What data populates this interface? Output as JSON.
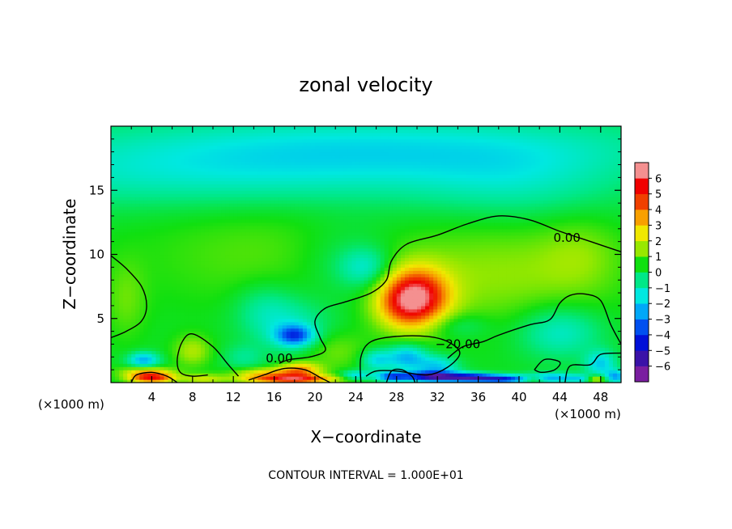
{
  "chart_data": {
    "type": "heatmap",
    "title": "zonal velocity",
    "xlabel": "X−coordinate",
    "ylabel": "Z−coordinate",
    "x_unit": "(×1000 m)",
    "y_unit": "(×1000 m)",
    "xlim": [
      0,
      50
    ],
    "ylim": [
      0,
      20
    ],
    "x_ticks": [
      4,
      8,
      12,
      16,
      20,
      24,
      28,
      32,
      36,
      40,
      44,
      48
    ],
    "y_ticks": [
      5,
      10,
      15
    ],
    "x_tick_labels": [
      "4",
      "8",
      "12",
      "16",
      "20",
      "24",
      "28",
      "32",
      "36",
      "40",
      "44",
      "48"
    ],
    "y_tick_labels": [
      "5",
      "10",
      "15"
    ],
    "colorbar": {
      "min": -6,
      "max": 6,
      "ticks": [
        6,
        5,
        4,
        3,
        2,
        1,
        0,
        -1,
        -2,
        -3,
        -4,
        -5,
        -6
      ],
      "tick_labels": [
        "6",
        "5",
        "4",
        "3",
        "2",
        "1",
        "0",
        "−1",
        "−2",
        "−3",
        "−4",
        "−5",
        "−6"
      ],
      "colors": [
        "#7a1ea0",
        "#3a12a8",
        "#0010d8",
        "#0050f0",
        "#00a8f8",
        "#00e8e0",
        "#00e888",
        "#10e010",
        "#98e800",
        "#f0e800",
        "#f8a000",
        "#f04000",
        "#f00000",
        "#f49090"
      ]
    },
    "contour_labels": [
      {
        "text": "0.00",
        "x": 44.7,
        "y": 11.3
      },
      {
        "text": "0.00",
        "x": 16.5,
        "y": 1.9
      },
      {
        "text": "−20.00",
        "x": 34.0,
        "y": 3.0
      }
    ],
    "contours": [
      {
        "level": 0,
        "points": [
          [
            0,
            9.9
          ],
          [
            1.5,
            8.9
          ],
          [
            3,
            7.5
          ],
          [
            3.5,
            6
          ],
          [
            3,
            4.8
          ],
          [
            1.5,
            4
          ],
          [
            0,
            3.5
          ]
        ]
      },
      {
        "level": 0,
        "points": [
          [
            50,
            10.2
          ],
          [
            47,
            11
          ],
          [
            44,
            11.8
          ],
          [
            41,
            12.7
          ],
          [
            38,
            13
          ],
          [
            35,
            12.4
          ],
          [
            32,
            11.5
          ],
          [
            29,
            10.8
          ],
          [
            27.5,
            9.5
          ],
          [
            27,
            8
          ],
          [
            25.5,
            7
          ],
          [
            23,
            6.3
          ],
          [
            21,
            5.8
          ],
          [
            20,
            4.8
          ],
          [
            20.5,
            3.5
          ],
          [
            21,
            2.5
          ],
          [
            19.5,
            2
          ],
          [
            17.5,
            1.8
          ],
          [
            16.5,
            1.5
          ]
        ]
      },
      {
        "level": 0,
        "points": [
          [
            12.5,
            0.5
          ],
          [
            11.5,
            1.4
          ],
          [
            10,
            2.8
          ],
          [
            8,
            3.8
          ],
          [
            7,
            3.2
          ],
          [
            6.5,
            1.8
          ],
          [
            6.8,
            0.8
          ],
          [
            8,
            0.5
          ],
          [
            9.5,
            0.6
          ]
        ]
      },
      {
        "level": 0,
        "points": [
          [
            2,
            0
          ],
          [
            2.5,
            0.6
          ],
          [
            4,
            0.8
          ],
          [
            5.5,
            0.5
          ],
          [
            6.5,
            0
          ]
        ]
      },
      {
        "level": 0,
        "points": [
          [
            13.5,
            0.2
          ],
          [
            15,
            0.6
          ],
          [
            17,
            1.1
          ],
          [
            19,
            1.0
          ],
          [
            20.5,
            0.4
          ],
          [
            21.5,
            0
          ]
        ]
      },
      {
        "level": -20,
        "points": [
          [
            50,
            3
          ],
          [
            49,
            4.5
          ],
          [
            48,
            6.4
          ],
          [
            46.5,
            6.9
          ],
          [
            45,
            6.8
          ],
          [
            44,
            6.2
          ],
          [
            43,
            4.9
          ],
          [
            41,
            4.5
          ],
          [
            38,
            3.7
          ],
          [
            36.5,
            3.2
          ],
          [
            34.5,
            2.8
          ],
          [
            33,
            1.9
          ]
        ]
      },
      {
        "level": -20,
        "points": [
          [
            24.5,
            0
          ],
          [
            24.5,
            2
          ],
          [
            25.5,
            3.2
          ],
          [
            28,
            3.6
          ],
          [
            31,
            3.6
          ],
          [
            33,
            3.2
          ],
          [
            34.2,
            2.3
          ],
          [
            33,
            1.2
          ],
          [
            31,
            0.6
          ],
          [
            28,
            0.9
          ],
          [
            26,
            0.9
          ],
          [
            25,
            0.5
          ]
        ]
      },
      {
        "level": -20,
        "points": [
          [
            41.5,
            1
          ],
          [
            42.5,
            1.8
          ],
          [
            44,
            1.6
          ],
          [
            43.5,
            1
          ],
          [
            42.2,
            0.8
          ],
          [
            41.5,
            1
          ]
        ]
      },
      {
        "level": -20,
        "points": [
          [
            44.5,
            0
          ],
          [
            45,
            1.3
          ],
          [
            47,
            1.4
          ],
          [
            48,
            2.2
          ],
          [
            50,
            2.3
          ]
        ]
      },
      {
        "level": -20,
        "points": [
          [
            27,
            0
          ],
          [
            27.5,
            0.9
          ],
          [
            28.5,
            1
          ],
          [
            29.5,
            0.5
          ],
          [
            29.8,
            0
          ]
        ]
      }
    ],
    "blobs": [
      {
        "x": 10,
        "y": 16,
        "v": -1.1,
        "rx": 30,
        "ry": 2.5
      },
      {
        "x": 25,
        "y": 18.5,
        "v": -1.6,
        "rx": 30,
        "ry": 2.5
      },
      {
        "x": 40,
        "y": 15.5,
        "v": -0.8,
        "rx": 10,
        "ry": 3
      },
      {
        "x": 15,
        "y": 10,
        "v": 0.6,
        "rx": 12,
        "ry": 4
      },
      {
        "x": 23,
        "y": 9.5,
        "v": -0.7,
        "rx": 5,
        "ry": 3
      },
      {
        "x": 25,
        "y": 9,
        "v": -1.4,
        "rx": 2.5,
        "ry": 1.5
      },
      {
        "x": 38,
        "y": 8.5,
        "v": 1.0,
        "rx": 10,
        "ry": 4
      },
      {
        "x": 46,
        "y": 10,
        "v": 0.7,
        "rx": 4,
        "ry": 3
      },
      {
        "x": 30,
        "y": 6.8,
        "v": 3.2,
        "rx": 3,
        "ry": 2
      },
      {
        "x": 29.5,
        "y": 6.5,
        "v": 2.2,
        "rx": 3.5,
        "ry": 2.6
      },
      {
        "x": 28.5,
        "y": 6.0,
        "v": 1.0,
        "rx": 2.5,
        "ry": 1.5
      },
      {
        "x": 18,
        "y": 3.7,
        "v": -3.2,
        "rx": 1.8,
        "ry": 0.8
      },
      {
        "x": 17.5,
        "y": 4.5,
        "v": -1.2,
        "rx": 4,
        "ry": 2
      },
      {
        "x": 15,
        "y": 6,
        "v": -0.8,
        "rx": 3,
        "ry": 2
      },
      {
        "x": 22,
        "y": 2.5,
        "v": 0.8,
        "rx": 3,
        "ry": 1.5
      },
      {
        "x": 3.2,
        "y": 1.8,
        "v": -2.5,
        "rx": 1.5,
        "ry": 0.6
      },
      {
        "x": 1.5,
        "y": 6.5,
        "v": 0.7,
        "rx": 2,
        "ry": 3
      },
      {
        "x": 8,
        "y": 2.5,
        "v": 1.3,
        "rx": 1.8,
        "ry": 1.2
      },
      {
        "x": 13,
        "y": 2.0,
        "v": -0.8,
        "rx": 2,
        "ry": 1
      },
      {
        "x": 34,
        "y": 4.5,
        "v": -0.8,
        "rx": 3,
        "ry": 1
      },
      {
        "x": 44,
        "y": 4,
        "v": -1.5,
        "rx": 4,
        "ry": 2
      },
      {
        "x": 48,
        "y": 1.5,
        "v": -2.0,
        "rx": 1.5,
        "ry": 1
      },
      {
        "x": 26,
        "y": 1.8,
        "v": -1.8,
        "rx": 1.5,
        "ry": 0.8
      },
      {
        "x": 29,
        "y": 2.0,
        "v": -2.5,
        "rx": 2,
        "ry": 1
      },
      {
        "x": 32,
        "y": 1.3,
        "v": -2.0,
        "rx": 2,
        "ry": 0.8
      },
      {
        "x": 31.5,
        "y": 0.5,
        "v": -5.0,
        "rx": 3,
        "ry": 0.4
      },
      {
        "x": 35.5,
        "y": 0.4,
        "v": -4.5,
        "rx": 2.5,
        "ry": 0.35
      },
      {
        "x": 38.5,
        "y": 0.3,
        "v": -3.5,
        "rx": 2,
        "ry": 0.3
      },
      {
        "x": 27.5,
        "y": 0.5,
        "v": -3.0,
        "rx": 1.5,
        "ry": 0.4
      },
      {
        "x": 24,
        "y": 0.6,
        "v": -2.0,
        "rx": 1.5,
        "ry": 0.4
      },
      {
        "x": 43,
        "y": 0.4,
        "v": -2.5,
        "rx": 3,
        "ry": 0.4
      },
      {
        "x": 46.5,
        "y": 0.3,
        "v": -1.5,
        "rx": 1.5,
        "ry": 0.3
      },
      {
        "x": 49.5,
        "y": 0.5,
        "v": -2.5,
        "rx": 1,
        "ry": 0.5
      },
      {
        "x": 4,
        "y": 0.4,
        "v": 4.5,
        "rx": 2.2,
        "ry": 0.4
      },
      {
        "x": 3.5,
        "y": 0.9,
        "v": 2.0,
        "rx": 2.5,
        "ry": 0.4
      },
      {
        "x": 9,
        "y": 0.3,
        "v": 1.5,
        "rx": 2,
        "ry": 0.4
      },
      {
        "x": 17.5,
        "y": 0.3,
        "v": 4.5,
        "rx": 4.5,
        "ry": 0.35
      },
      {
        "x": 18.5,
        "y": 1.0,
        "v": 3.0,
        "rx": 2,
        "ry": 0.6
      },
      {
        "x": 15,
        "y": 0.8,
        "v": 2.0,
        "rx": 3,
        "ry": 0.4
      },
      {
        "x": 47.5,
        "y": 0.3,
        "v": 3.0,
        "rx": 1,
        "ry": 0.3
      },
      {
        "x": 41.5,
        "y": 0.3,
        "v": 1.5,
        "rx": 1,
        "ry": 0.3
      }
    ]
  },
  "footer": {
    "contour_interval": "CONTOUR INTERVAL = 1.000E+01"
  }
}
